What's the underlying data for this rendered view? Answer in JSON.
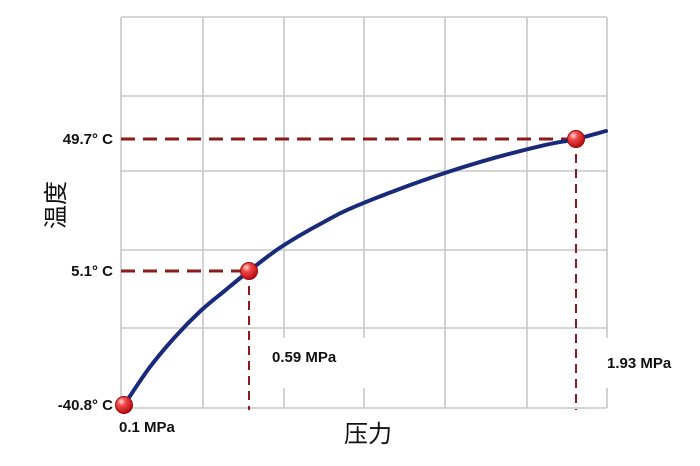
{
  "chart_data": {
    "type": "line",
    "title": "",
    "xlabel": "压力",
    "ylabel": "温度",
    "grid": true,
    "series": [
      {
        "x": [
          0.1,
          0.2,
          0.3,
          0.4,
          0.5,
          0.59,
          0.7,
          0.8,
          0.9,
          1.0,
          1.2,
          1.4,
          1.6,
          1.8,
          1.93,
          2.0
        ],
        "values": [
          -40.8,
          -28.0,
          -17.5,
          -8.6,
          -1.3,
          5.1,
          12.0,
          17.2,
          21.8,
          26.0,
          32.6,
          38.4,
          43.4,
          47.6,
          49.7,
          51.0
        ]
      }
    ],
    "highlights": [
      {
        "x": 0.1,
        "y": -40.8,
        "x_label": "0.1 MPa",
        "y_label": "-40.8° C"
      },
      {
        "x": 0.59,
        "y": 5.1,
        "x_label": "0.59 MPa",
        "y_label": "5.1° C"
      },
      {
        "x": 1.93,
        "y": 49.7,
        "x_label": "1.93 MPa",
        "y_label": "49.7° C"
      }
    ],
    "colors": {
      "curve": "#1a2a7a",
      "guide": "#8b1a1a",
      "marker": "#e8232b",
      "grid": "#c8c8c8"
    }
  }
}
